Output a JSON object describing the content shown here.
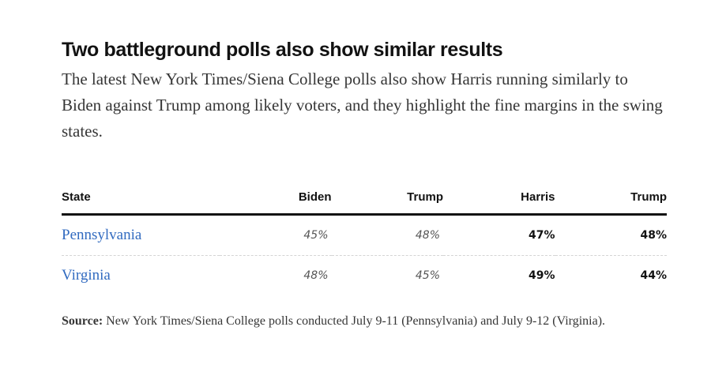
{
  "headline": "Two battleground polls also show similar results",
  "dek": "The latest New York Times/Siena College polls also show Harris running similarly to Biden against Trump among likely voters, and they highlight the fine margins in the swing states.",
  "table": {
    "headers": [
      "State",
      "Biden",
      "Trump",
      "Harris",
      "Trump"
    ],
    "rows": [
      {
        "state": "Pennsylvania",
        "biden": "45%",
        "trump_vs_biden": "48%",
        "harris": "47%",
        "trump_vs_harris": "48%"
      },
      {
        "state": "Virginia",
        "biden": "48%",
        "trump_vs_biden": "45%",
        "harris": "49%",
        "trump_vs_harris": "44%"
      }
    ]
  },
  "source": {
    "label": "Source:",
    "text": "New York Times/Siena College polls conducted July 9-11 (Pennsylvania) and July 9-12 (Virginia)."
  },
  "colors": {
    "link": "#326bc0",
    "text": "#121212",
    "muted": "#555555"
  }
}
